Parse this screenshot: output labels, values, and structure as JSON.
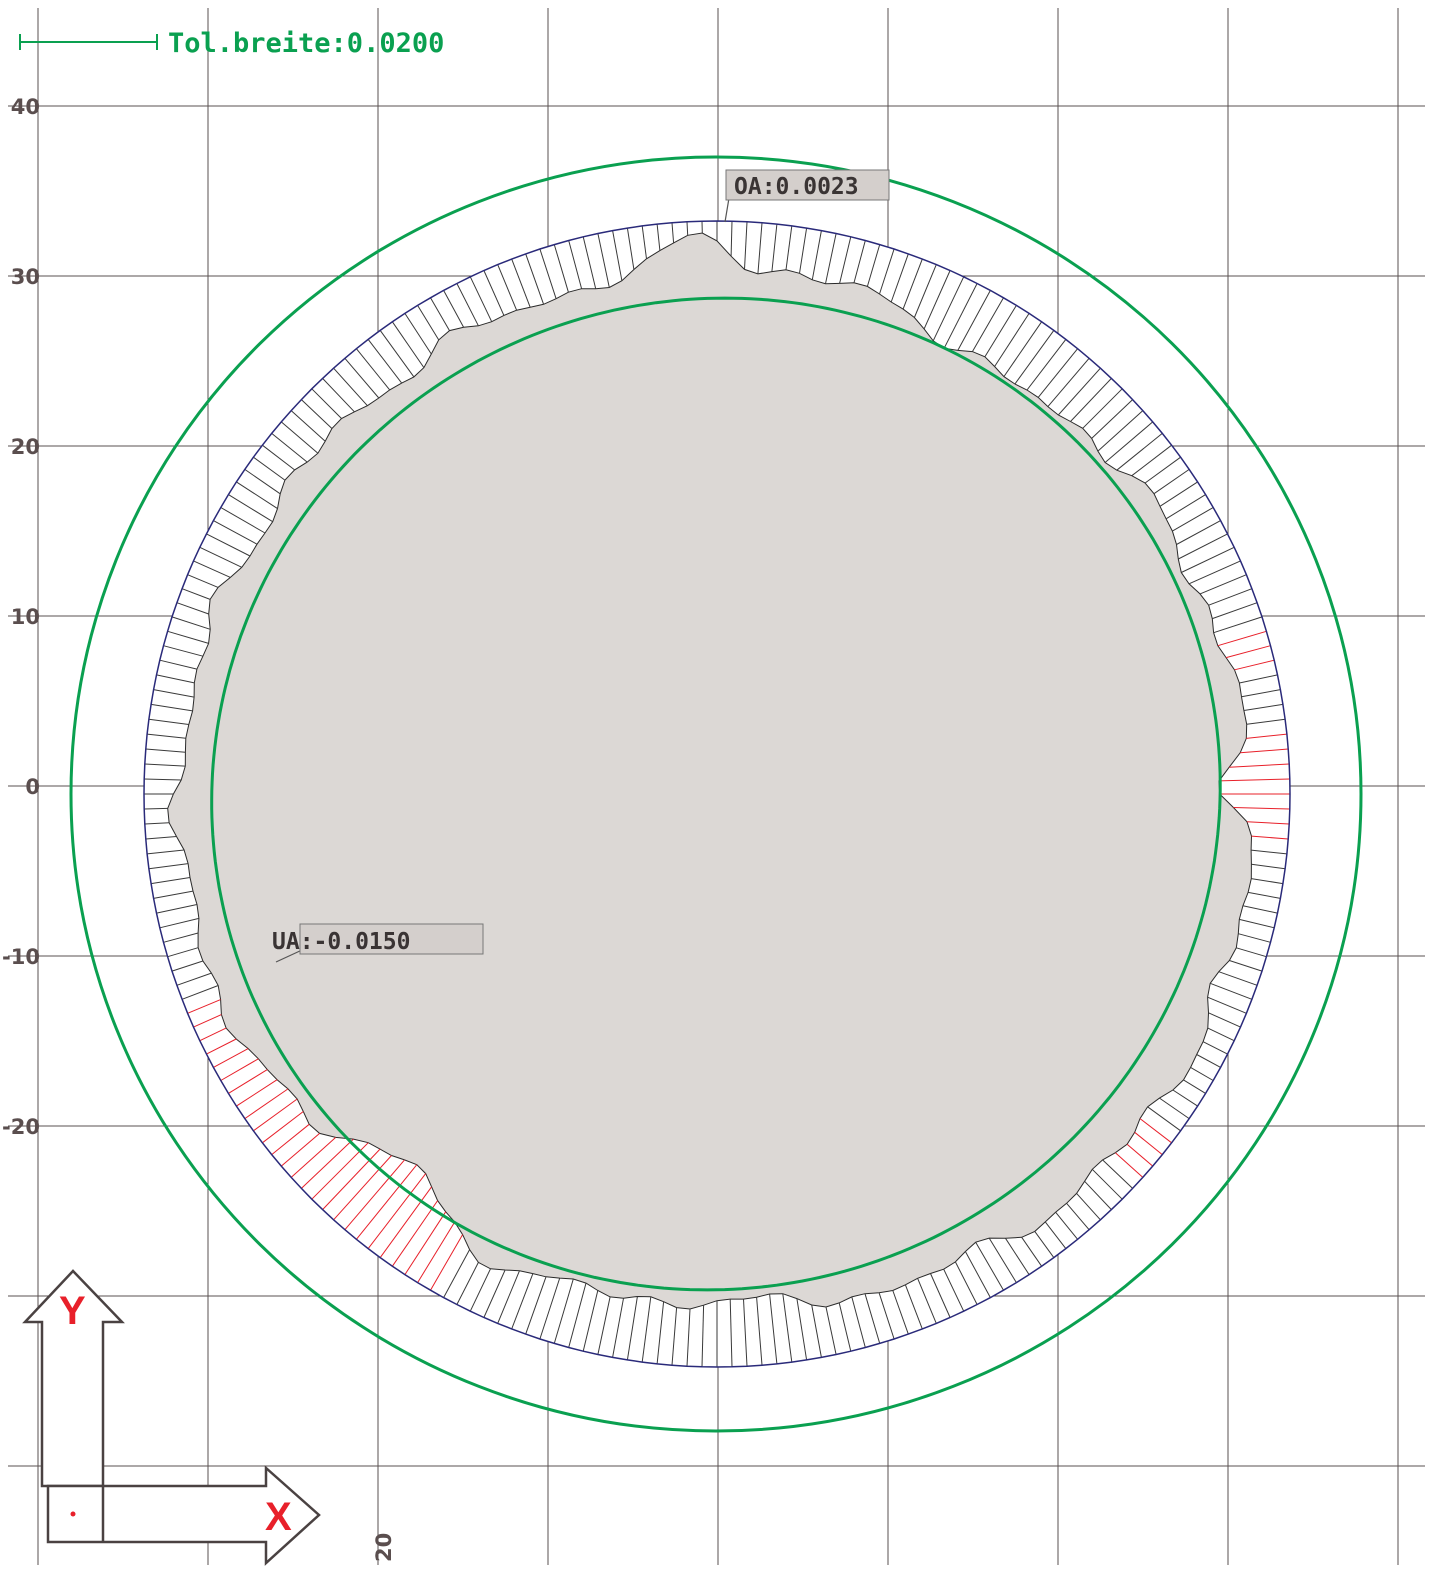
{
  "chart_data": {
    "type": "polar-deviation",
    "tolerance": {
      "label": "Tol.breite:0.0200"
    },
    "y_axis": {
      "ticks": [
        40,
        30,
        20,
        10,
        0,
        -10,
        -20
      ]
    },
    "x_axis": {
      "ticks": [
        20
      ]
    },
    "annotations": {
      "max_label": "OA:0.0023",
      "min_label": "UA:-0.0150"
    },
    "axis_indicator": {
      "x": "X",
      "y": "Y"
    },
    "colors": {
      "grid": "#5a5050",
      "tolerance": "#0aa050",
      "nominal": "#2a2a7a",
      "fill": "#dcd8d5",
      "out_of_tolerance": "#e8202a"
    }
  }
}
